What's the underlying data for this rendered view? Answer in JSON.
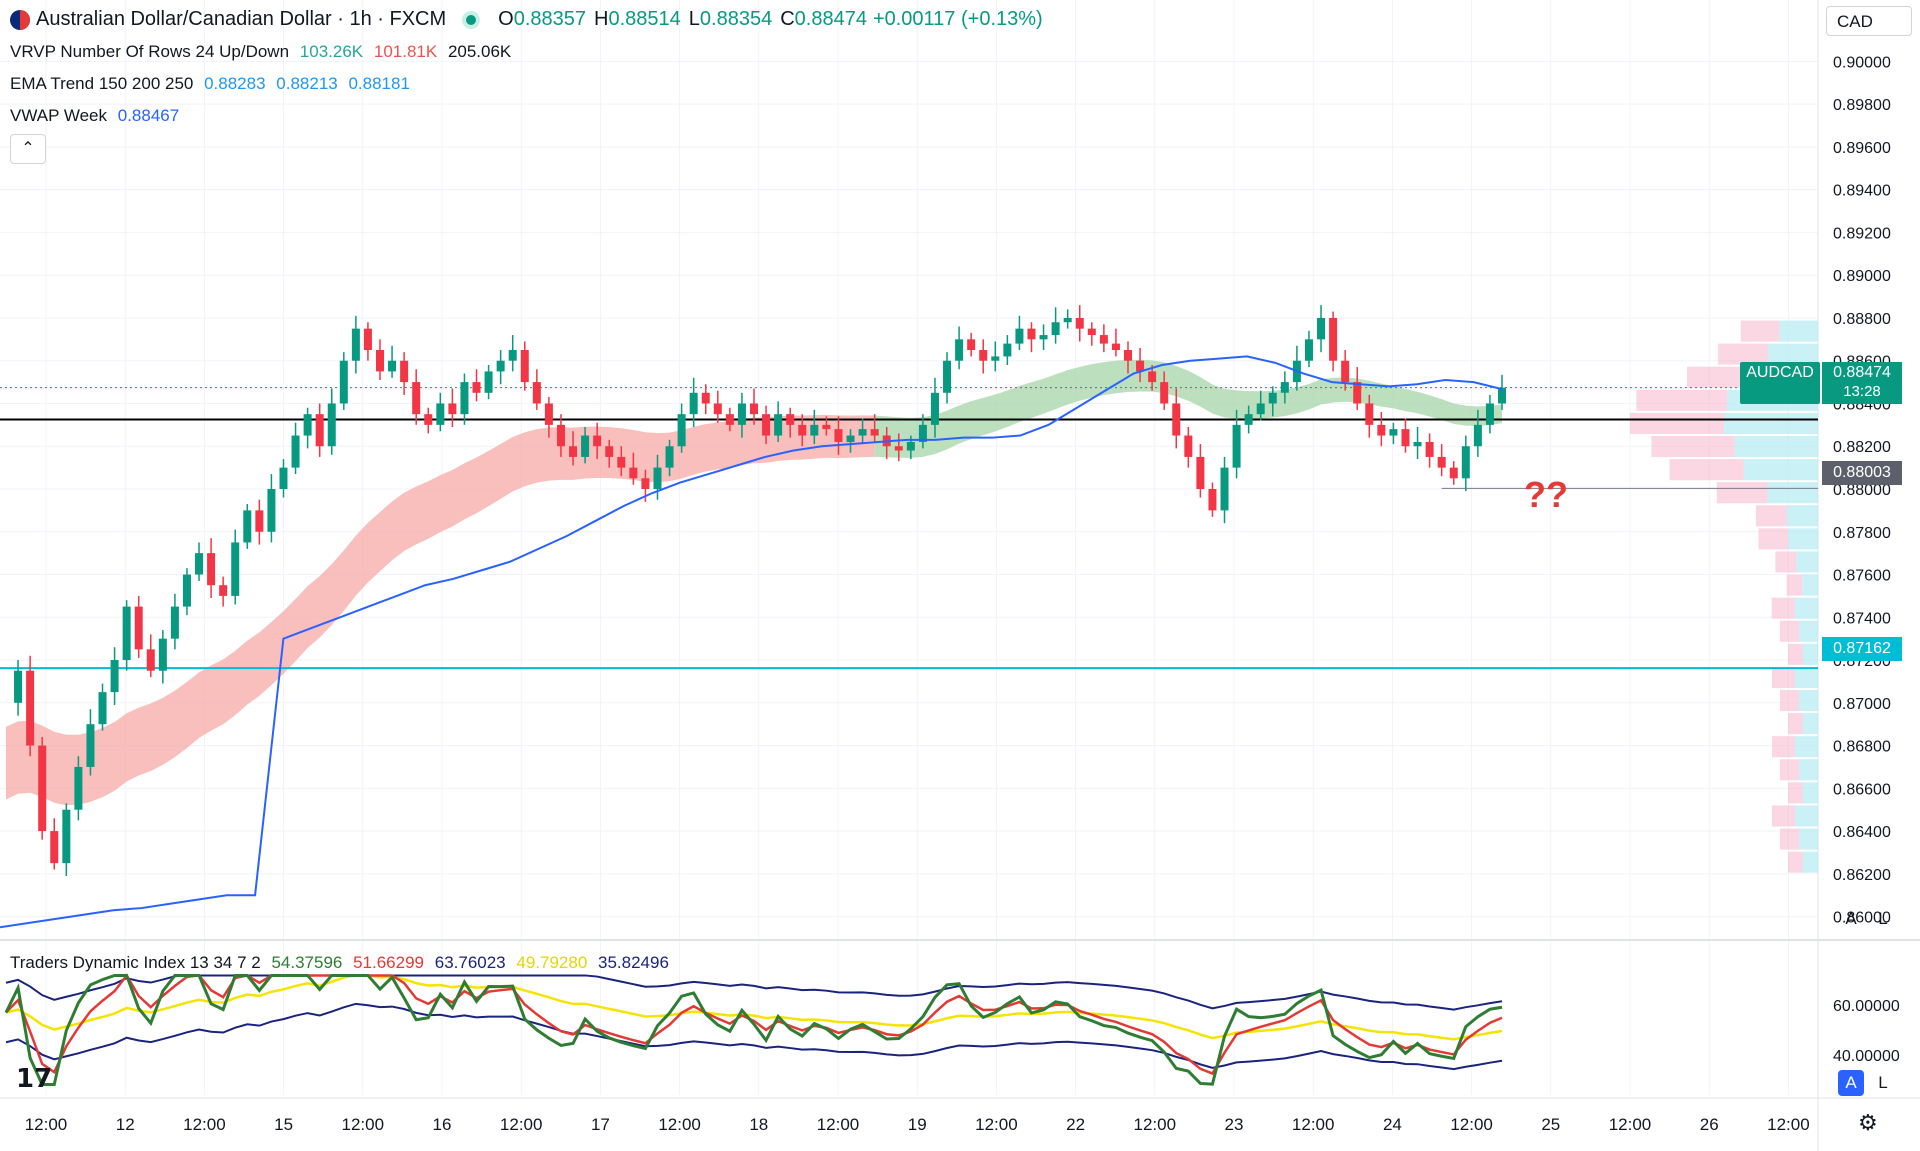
{
  "header": {
    "symbol_title": "Australian Dollar/Canadian Dollar · 1h · FXCM",
    "open_label": "O",
    "open": "0.88357",
    "high_label": "H",
    "high": "0.88514",
    "low_label": "L",
    "low": "0.88354",
    "close_label": "C",
    "close": "0.88474",
    "change": "+0.00117 (+0.13%)",
    "currency": "CAD"
  },
  "indicators": {
    "vrvp": {
      "label": "VRVP Number Of Rows 24 Up/Down",
      "v1": "103.26K",
      "v2": "101.81K",
      "v3": "205.06K"
    },
    "ema": {
      "label": "EMA Trend 150 200 250",
      "v1": "0.88283",
      "v2": "0.88213",
      "v3": "0.88181"
    },
    "vwap": {
      "label": "VWAP Week",
      "v1": "0.88467"
    },
    "tdi": {
      "label": "Traders Dynamic Index 13 34 7 2",
      "v1": "54.37596",
      "v2": "51.66299",
      "v3": "63.76023",
      "v4": "49.79280",
      "v5": "35.82496"
    }
  },
  "colors": {
    "up": "#089981",
    "down": "#f23645",
    "vwap": "#2962ff",
    "ema_bear": "#f7a9a7",
    "ema_bull": "#a5d6a7",
    "level": "#00bcd4",
    "tdi_green": "#2e7d32",
    "tdi_red": "#e53935",
    "tdi_yellow": "#f5e400",
    "tdi_band": "#1a237e"
  },
  "price_tags": {
    "symbol": "AUDCAD",
    "last": "0.88474",
    "countdown": "13:28",
    "marked_low": "0.88003",
    "level": "0.87162"
  },
  "annotation": "??",
  "buttons": {
    "auto": "A",
    "log": "L",
    "collapse": "⌃"
  },
  "chart_data": {
    "type": "candlestick",
    "timeframe": "1h",
    "y_axis_ticks": [
      "0.90000",
      "0.89800",
      "0.89600",
      "0.89400",
      "0.89200",
      "0.89000",
      "0.88800",
      "0.88600",
      "0.88400",
      "0.88200",
      "0.88000",
      "0.87800",
      "0.87600",
      "0.87400",
      "0.87200",
      "0.87000",
      "0.86800",
      "0.86600",
      "0.86400",
      "0.86200",
      "0.86000"
    ],
    "ylim": [
      0.859,
      0.901
    ],
    "x_axis_ticks": [
      "12:00",
      "12",
      "12:00",
      "15",
      "12:00",
      "16",
      "12:00",
      "17",
      "12:00",
      "18",
      "12:00",
      "19",
      "12:00",
      "22",
      "12:00",
      "23",
      "12:00",
      "24",
      "12:00",
      "25",
      "12:00",
      "26",
      "12:00"
    ],
    "horizontal_lines": [
      {
        "name": "resistance",
        "value": 0.88325,
        "color": "#000000"
      },
      {
        "name": "support",
        "value": 0.87162,
        "color": "#00bcd4"
      },
      {
        "name": "marked_low",
        "value": 0.88003,
        "color": "#787b86"
      }
    ],
    "ohlc_path": [
      0.87,
      0.8715,
      0.868,
      0.864,
      0.8625,
      0.865,
      0.867,
      0.869,
      0.8705,
      0.872,
      0.8745,
      0.8725,
      0.8715,
      0.873,
      0.8745,
      0.876,
      0.877,
      0.8755,
      0.875,
      0.8775,
      0.879,
      0.878,
      0.88,
      0.881,
      0.8825,
      0.8835,
      0.882,
      0.884,
      0.886,
      0.8875,
      0.8865,
      0.8855,
      0.886,
      0.885,
      0.8835,
      0.883,
      0.884,
      0.8835,
      0.885,
      0.8845,
      0.8855,
      0.886,
      0.8865,
      0.885,
      0.884,
      0.883,
      0.882,
      0.8815,
      0.8825,
      0.882,
      0.8815,
      0.881,
      0.8805,
      0.88,
      0.881,
      0.882,
      0.8835,
      0.8845,
      0.884,
      0.8835,
      0.883,
      0.884,
      0.8835,
      0.8825,
      0.8835,
      0.883,
      0.8825,
      0.883,
      0.8828,
      0.8822,
      0.8825,
      0.8828,
      0.8825,
      0.882,
      0.8818,
      0.8822,
      0.883,
      0.8845,
      0.886,
      0.887,
      0.8865,
      0.886,
      0.8862,
      0.8868,
      0.8875,
      0.887,
      0.8872,
      0.8878,
      0.888,
      0.8875,
      0.8872,
      0.8868,
      0.8865,
      0.886,
      0.8855,
      0.885,
      0.884,
      0.8825,
      0.8815,
      0.88,
      0.879,
      0.881,
      0.883,
      0.8835,
      0.884,
      0.8845,
      0.885,
      0.886,
      0.887,
      0.888,
      0.886,
      0.885,
      0.884,
      0.883,
      0.8825,
      0.8828,
      0.882,
      0.8822,
      0.8815,
      0.881,
      0.8805,
      0.882,
      0.883,
      0.884,
      0.88474
    ],
    "vwap": [
      0.8595,
      0.8597,
      0.8599,
      0.8601,
      0.8603,
      0.8604,
      0.8606,
      0.8608,
      0.861,
      0.861,
      0.873,
      0.8735,
      0.874,
      0.8745,
      0.875,
      0.8755,
      0.8758,
      0.8762,
      0.8766,
      0.8772,
      0.8778,
      0.8785,
      0.8792,
      0.8798,
      0.8803,
      0.8807,
      0.8811,
      0.8815,
      0.8818,
      0.882,
      0.8821,
      0.8822,
      0.8823,
      0.8823,
      0.8824,
      0.8824,
      0.8825,
      0.883,
      0.8838,
      0.8846,
      0.8854,
      0.8858,
      0.886,
      0.8861,
      0.8862,
      0.8859,
      0.8854,
      0.885,
      0.8849,
      0.8848,
      0.8849,
      0.8851,
      0.885,
      0.88467
    ]
  }
}
